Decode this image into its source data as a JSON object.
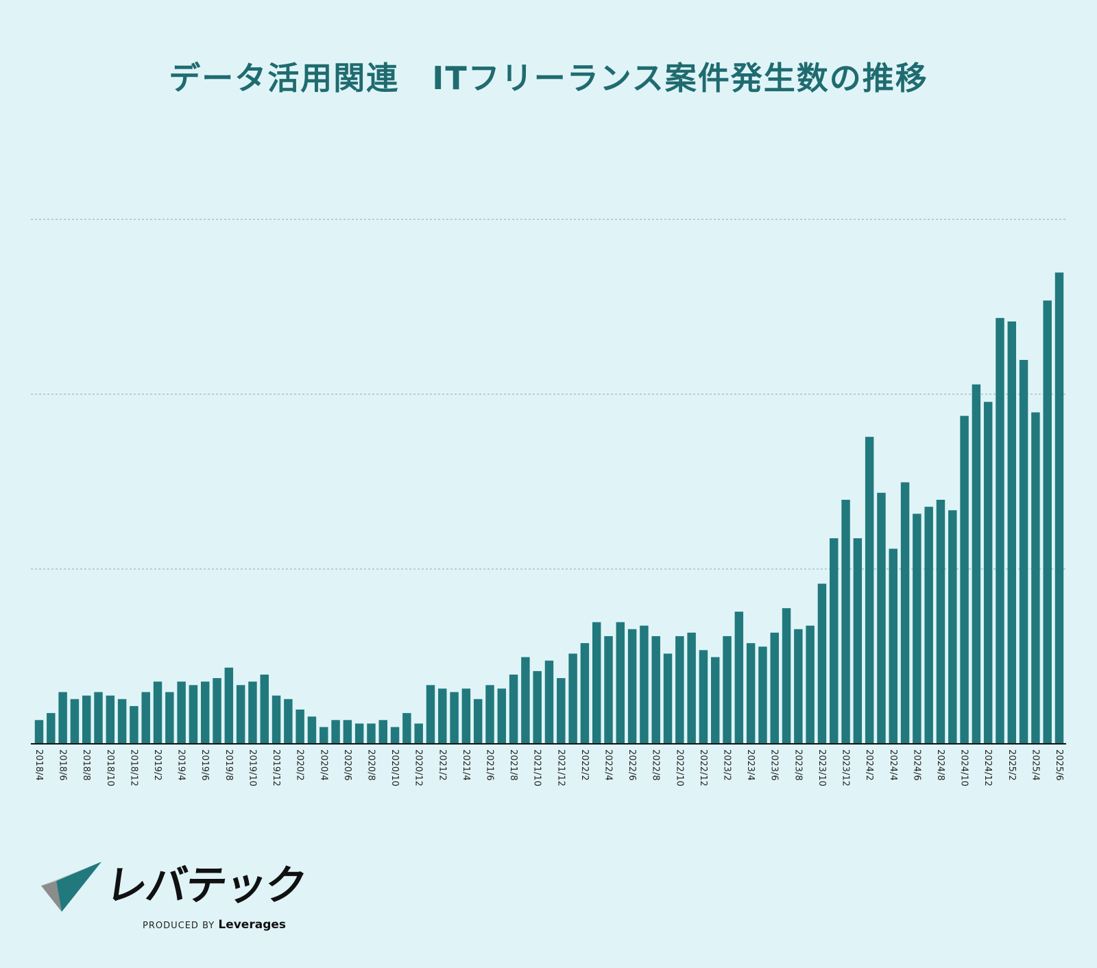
{
  "chart_data": {
    "type": "bar",
    "title": "データ活用関連　ITフリーランス案件発生数の推移",
    "xlabel": "",
    "ylabel": "",
    "grid": true,
    "legend": "none",
    "categories": [
      "2018/4",
      "2018/5",
      "2018/6",
      "2018/7",
      "2018/8",
      "2018/9",
      "2018/10",
      "2018/11",
      "2018/12",
      "2019/1",
      "2019/2",
      "2019/3",
      "2019/4",
      "2019/5",
      "2019/6",
      "2019/7",
      "2019/8",
      "2019/9",
      "2019/10",
      "2019/11",
      "2019/12",
      "2020/1",
      "2020/2",
      "2020/3",
      "2020/4",
      "2020/5",
      "2020/6",
      "2020/7",
      "2020/8",
      "2020/9",
      "2020/10",
      "2020/11",
      "2020/12",
      "2021/1",
      "2021/2",
      "2021/3",
      "2021/4",
      "2021/5",
      "2021/6",
      "2021/7",
      "2021/8",
      "2021/9",
      "2021/10",
      "2021/11",
      "2021/12",
      "2022/1",
      "2022/2",
      "2022/3",
      "2022/4",
      "2022/5",
      "2022/6",
      "2022/7",
      "2022/8",
      "2022/9",
      "2022/10",
      "2022/11",
      "2022/12",
      "2023/1",
      "2023/2",
      "2023/3",
      "2023/4",
      "2023/5",
      "2023/6",
      "2023/7",
      "2023/8",
      "2023/9",
      "2023/10",
      "2023/11",
      "2023/12",
      "2024/1",
      "2024/2",
      "2024/3",
      "2024/4",
      "2024/5",
      "2024/6",
      "2024/7",
      "2024/8",
      "2024/9",
      "2024/10",
      "2024/11",
      "2024/12",
      "2025/1",
      "2025/2",
      "2025/3",
      "2025/4",
      "2025/5",
      "2025/6"
    ],
    "tick_labels": [
      "2018/4",
      "2018/6",
      "2018/8",
      "2018/10",
      "2018/12",
      "2019/2",
      "2019/4",
      "2019/6",
      "2019/8",
      "2019/10",
      "2019/12",
      "2020/2",
      "2020/4",
      "2020/6",
      "2020/8",
      "2020/10",
      "2020/12",
      "2021/2",
      "2021/4",
      "2021/6",
      "2021/8",
      "2021/10",
      "2021/12",
      "2022/2",
      "2022/4",
      "2022/6",
      "2022/8",
      "2022/10",
      "2022/12",
      "2023/2",
      "2023/4",
      "2023/6",
      "2023/8",
      "2023/10",
      "2023/12",
      "2024/2",
      "2024/4",
      "2024/6",
      "2024/8",
      "2024/10",
      "2024/12",
      "2025/2",
      "2025/4",
      "2025/6"
    ],
    "values": [
      34,
      44,
      74,
      64,
      69,
      74,
      69,
      64,
      54,
      74,
      89,
      74,
      89,
      84,
      89,
      94,
      109,
      84,
      89,
      99,
      69,
      64,
      49,
      39,
      24,
      34,
      34,
      29,
      29,
      34,
      24,
      44,
      29,
      84,
      79,
      74,
      79,
      64,
      84,
      79,
      99,
      124,
      104,
      119,
      94,
      129,
      144,
      174,
      154,
      174,
      164,
      169,
      154,
      129,
      154,
      159,
      134,
      124,
      154,
      189,
      144,
      139,
      159,
      194,
      164,
      169,
      229,
      294,
      349,
      294,
      439,
      359,
      279,
      374,
      329,
      339,
      349,
      334,
      469,
      514,
      489,
      609,
      604,
      549,
      474,
      634,
      674
    ],
    "ylim": [
      0,
      1000
    ],
    "y_gridlines": [
      250,
      500,
      750
    ],
    "bar_color": "#21797d",
    "gridline_color": "#9dc6c9",
    "axis_color": "#111111"
  },
  "logo": {
    "name": "レバテック",
    "produced_by": "PRODUCED BY",
    "brand": "Leverages",
    "colors": {
      "teal": "#21797d",
      "dark": "#1b3a4b",
      "gray": "#8c8c8c",
      "light": "#c8c8c8"
    }
  },
  "colors": {
    "background": "#e0f4f7",
    "title": "#1f6b70"
  }
}
